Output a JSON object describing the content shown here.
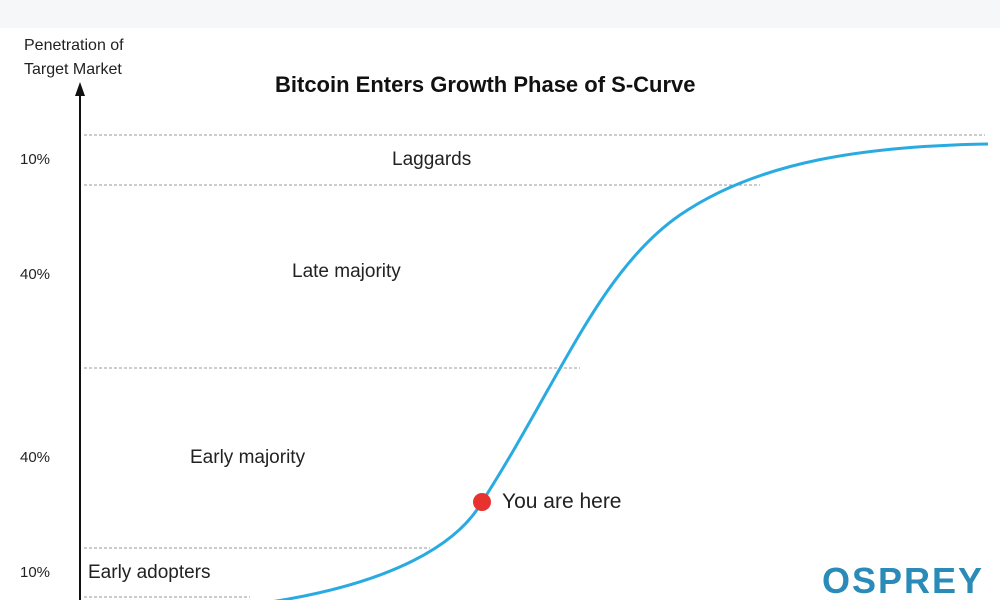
{
  "chart_data": {
    "type": "line",
    "title": "Bitcoin Enters Growth Phase of S-Curve",
    "ylabel": [
      "Penetration of",
      "Target Market"
    ],
    "xlabel": "",
    "segments": [
      {
        "tick": "10%",
        "label": "Laggards"
      },
      {
        "tick": "40%",
        "label": "Late majority"
      },
      {
        "tick": "40%",
        "label": "Early majority"
      },
      {
        "tick": "10%",
        "label": "Early adopters"
      }
    ],
    "annotation": {
      "label": "You are here"
    },
    "grid": "dashed horizontal lines at segment boundaries",
    "line_color": "#29abe2",
    "marker_color": "#e8322e"
  },
  "logo": {
    "text": "OSPREY",
    "color": "#2a8ab8"
  }
}
